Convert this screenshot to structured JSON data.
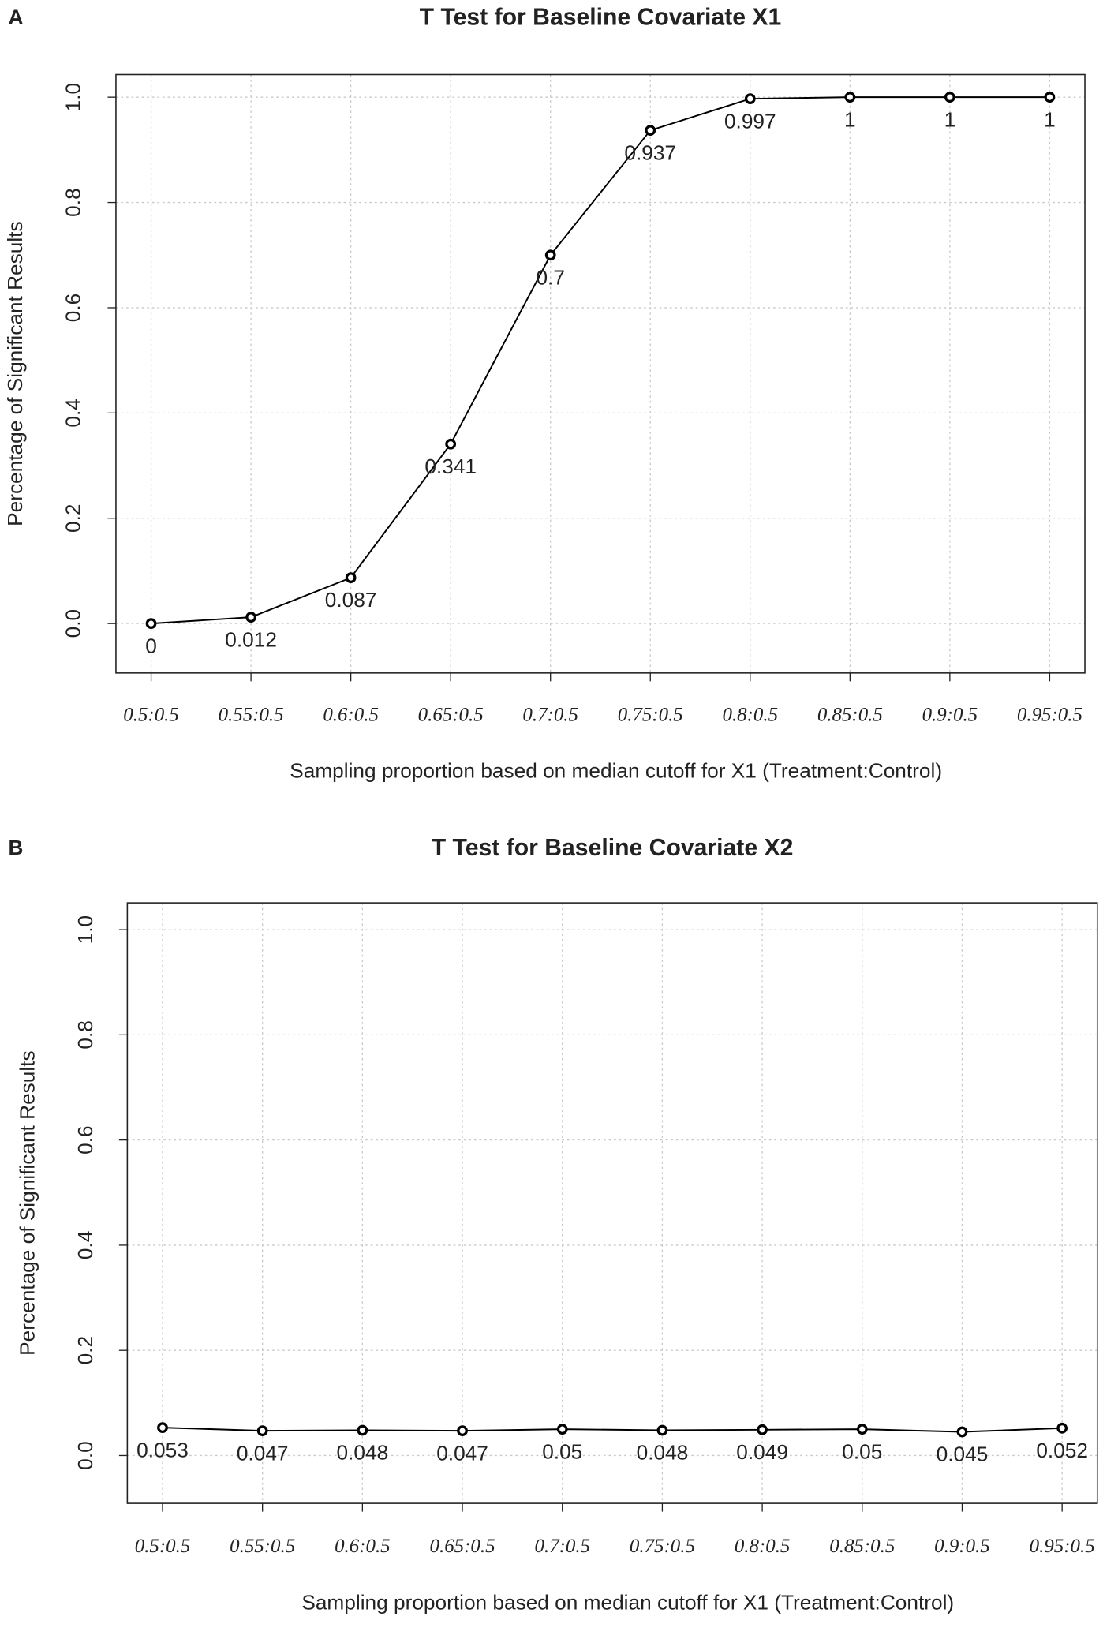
{
  "chart_data": [
    {
      "type": "line",
      "panel_label": "A",
      "title": "T Test for Baseline Covariate X1",
      "x_label": "Sampling proportion based on median cutoff for X1 (Treatment:Control)",
      "y_label": "Percentage of Significant Results",
      "categories": [
        "0.5:0.5",
        "0.55:0.5",
        "0.6:0.5",
        "0.65:0.5",
        "0.7:0.5",
        "0.75:0.5",
        "0.8:0.5",
        "0.85:0.5",
        "0.9:0.5",
        "0.95:0.5"
      ],
      "values": [
        0,
        0.012,
        0.087,
        0.341,
        0.7,
        0.937,
        0.997,
        1,
        1,
        1
      ],
      "color": "#000000",
      "grid": true,
      "ylim": [
        -0.094,
        1.043
      ],
      "yticks": [
        {
          "value": 0,
          "label": "0.0"
        },
        0.2,
        0.4,
        0.6,
        0.8,
        {
          "value": 1,
          "label": "1.0"
        }
      ]
    },
    {
      "type": "line",
      "panel_label": "B",
      "title": "T Test for Baseline Covariate X2",
      "x_label": "Sampling proportion based on median cutoff for X1 (Treatment:Control)",
      "y_label": "Percentage of Significant Results",
      "categories": [
        "0.5:0.5",
        "0.55:0.5",
        "0.6:0.5",
        "0.65:0.5",
        "0.7:0.5",
        "0.75:0.5",
        "0.8:0.5",
        "0.85:0.5",
        "0.9:0.5",
        "0.95:0.5"
      ],
      "values": [
        0.053,
        0.047,
        0.048,
        0.047,
        0.05,
        0.048,
        0.049,
        0.05,
        0.045,
        0.052
      ],
      "color": "#000000",
      "grid": true,
      "ylim": [
        -0.091,
        1.051
      ],
      "yticks": [
        {
          "value": 0,
          "label": "0.0"
        },
        0.2,
        0.4,
        0.6,
        0.8,
        {
          "value": 1,
          "label": "1.0"
        }
      ]
    }
  ]
}
